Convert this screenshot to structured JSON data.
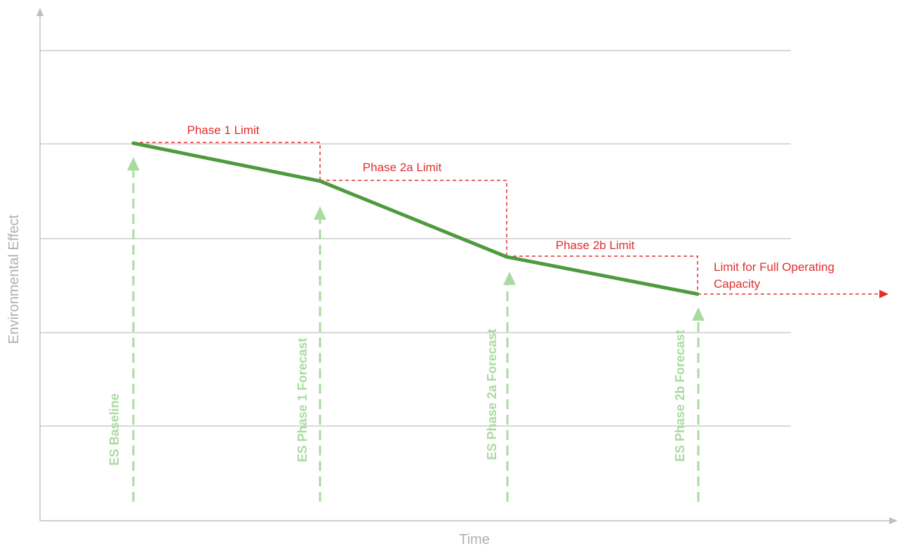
{
  "axes": {
    "x_label": "Time",
    "y_label": "Environmental Effect"
  },
  "colors": {
    "axis": "#c0c0c0",
    "gridline": "#cccccc",
    "trend_line": "#4e9a3e",
    "limit": "#e03030",
    "marker": "#a9dba0",
    "marker_text": "#a9dba0",
    "axis_text": "#b0b0b0"
  },
  "limits": {
    "phase_1": "Phase 1 Limit",
    "phase_2a": "Phase 2a Limit",
    "phase_2b": "Phase 2b Limit",
    "full_operating_line1": "Limit for Full Operating",
    "full_operating_line2": "Capacity"
  },
  "markers": {
    "baseline": "ES Baseline",
    "phase_1_forecast": "ES Phase 1 Forecast",
    "phase_2a_forecast": "ES Phase 2a Forecast",
    "phase_2b_forecast": "ES Phase 2b Forecast"
  }
}
